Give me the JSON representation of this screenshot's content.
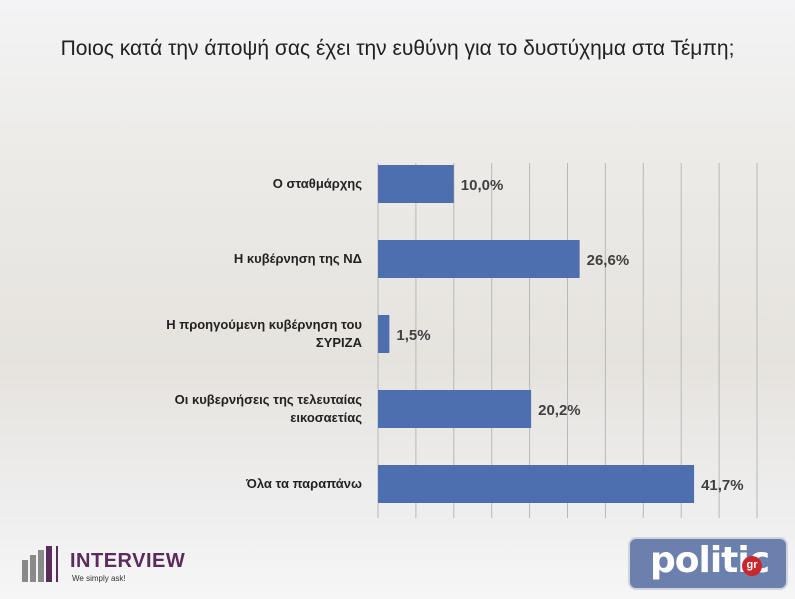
{
  "chart_data": {
    "type": "barh",
    "title": "Ποιος κατά την άποψή σας έχει την ευθύνη για το δυστύχημα στα Τέμπη;",
    "categories": [
      "Ο σταθμάρχης",
      "Η κυβέρνηση της ΝΔ",
      "Η προηγούμενη κυβέρνηση του ΣΥΡΙΖΑ",
      "Οι κυβερνήσεις της τελευταίας εικοσαετίας",
      "Όλα τα παραπάνω"
    ],
    "values": [
      10.0,
      26.6,
      1.5,
      20.2,
      41.7
    ],
    "value_labels": [
      "10,0%",
      "26,6%",
      "1,5%",
      "20,2%",
      "41,7%"
    ],
    "color": "#4d6fb0",
    "xlim": [
      0,
      50
    ],
    "grid_values": [
      0,
      5,
      10,
      15,
      20,
      25,
      30,
      35,
      40,
      45,
      50
    ],
    "grid": true
  },
  "branding": {
    "pollster": "INTERVIEW",
    "slogan": "We simply ask!",
    "site": "politic",
    "site_suffix": "gr"
  }
}
